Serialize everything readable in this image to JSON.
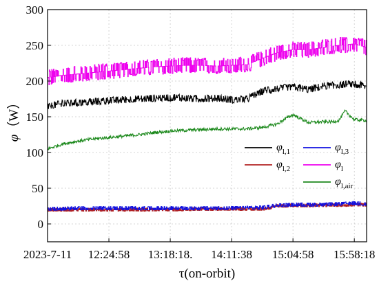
{
  "chart_data": {
    "type": "line",
    "xlabel": "τ(on-orbit)",
    "ylabel": "φ",
    "ylabel_unit": "（W）",
    "ylim": [
      -25,
      300
    ],
    "yticks": [
      0,
      50,
      100,
      150,
      200,
      250,
      300
    ],
    "x_tick_labels": [
      "2023-7-11",
      "12:24:58",
      "13:18:18.",
      "14:11:38",
      "15:04:58",
      "15:58:18"
    ],
    "x_tick_positions": [
      0,
      20,
      40,
      60,
      80,
      100
    ],
    "xlim": [
      0,
      104
    ],
    "grid": true,
    "legend_placement": "right-center",
    "series": [
      {
        "name": "φl,1",
        "label_main": "φ",
        "label_sub": "l,1",
        "color": "#000000",
        "x": [
          0,
          5,
          10,
          15,
          20,
          25,
          30,
          35,
          40,
          45,
          50,
          55,
          60,
          65,
          70,
          75,
          80,
          85,
          90,
          95,
          100,
          104
        ],
        "values": [
          164,
          169,
          170,
          171,
          173,
          174,
          175,
          176,
          177,
          176,
          175,
          176,
          174,
          175,
          186,
          190,
          192,
          188,
          193,
          195,
          196,
          193
        ]
      },
      {
        "name": "φl,3",
        "label_main": "φ",
        "label_sub": "l,3",
        "color": "#1010e0",
        "x": [
          0,
          10,
          20,
          30,
          40,
          50,
          60,
          70,
          75,
          80,
          90,
          100,
          104
        ],
        "values": [
          21,
          22,
          22,
          22,
          22,
          22,
          22,
          23,
          26,
          27,
          27,
          29,
          28
        ]
      },
      {
        "name": "φl,2",
        "label_main": "φ",
        "label_sub": "l,2",
        "color": "#b22222",
        "x": [
          0,
          10,
          20,
          30,
          40,
          50,
          60,
          70,
          75,
          80,
          90,
          100,
          104
        ],
        "values": [
          20,
          20,
          20,
          20,
          20,
          21,
          21,
          21,
          25,
          26,
          26,
          27,
          27
        ]
      },
      {
        "name": "φl",
        "label_main": "φ",
        "label_sub": "l",
        "color": "#ee00ee",
        "x": [
          0,
          5,
          10,
          15,
          20,
          25,
          30,
          35,
          40,
          45,
          50,
          55,
          60,
          65,
          70,
          75,
          80,
          85,
          90,
          95,
          100,
          104
        ],
        "values": [
          205,
          208,
          210,
          212,
          214,
          216,
          218,
          220,
          221,
          222,
          222,
          221,
          222,
          223,
          232,
          240,
          244,
          244,
          247,
          250,
          252,
          247
        ]
      },
      {
        "name": "φl,air",
        "label_main": "φ",
        "label_sub": "l,air",
        "color": "#1e8a1e",
        "x": [
          0,
          5,
          10,
          15,
          20,
          25,
          30,
          35,
          40,
          45,
          50,
          55,
          60,
          65,
          70,
          72,
          75,
          77,
          80,
          85,
          90,
          93,
          95,
          97,
          100,
          104
        ],
        "values": [
          105,
          112,
          116,
          119,
          121,
          123,
          125,
          128,
          130,
          131,
          132,
          133,
          133,
          133,
          135,
          137,
          140,
          146,
          153,
          142,
          143,
          143,
          145,
          158,
          146,
          145
        ]
      }
    ],
    "legend_order": [
      [
        "φl,1",
        "φl,3"
      ],
      [
        "φl,2",
        "φl"
      ],
      [
        null,
        "φl,air"
      ]
    ]
  }
}
